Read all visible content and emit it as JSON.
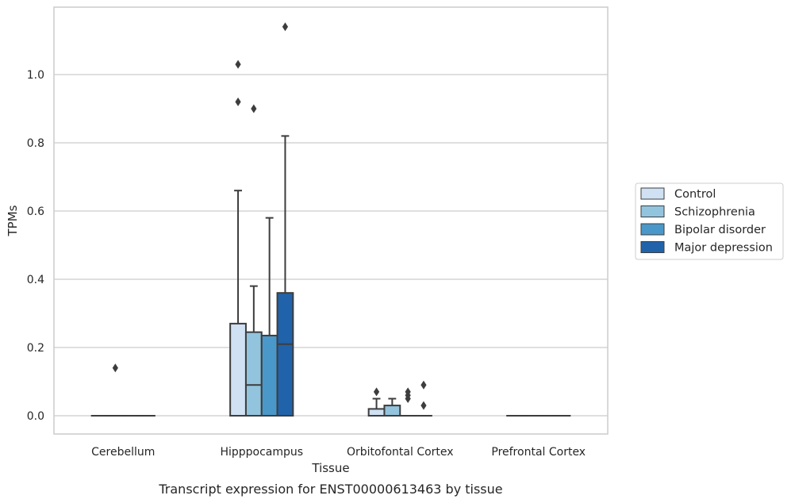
{
  "caption": "Transcript expression for ENST00000613463 by tissue",
  "chart_data": {
    "type": "box",
    "xlabel": "Tissue",
    "ylabel": "TPMs",
    "ylim": [
      -0.055,
      1.2
    ],
    "yticks": [
      "0.0",
      "0.2",
      "0.4",
      "0.6",
      "0.8",
      "1.0"
    ],
    "grid": true,
    "legend_position": "right",
    "categories": [
      "Cerebellum",
      "Hipppocampus",
      "Orbitofontal Cortex",
      "Prefrontal Cortex"
    ],
    "series": [
      {
        "name": "Control",
        "color": "#cfe1f2",
        "boxes": [
          {
            "q1": 0,
            "median": 0,
            "q3": 0,
            "whisker_low": 0,
            "whisker_high": 0,
            "outliers": []
          },
          {
            "q1": 0,
            "median": 0,
            "q3": 0.27,
            "whisker_low": 0,
            "whisker_high": 0.66,
            "outliers": [
              0.92,
              1.03
            ]
          },
          {
            "q1": 0,
            "median": 0,
            "q3": 0.02,
            "whisker_low": 0,
            "whisker_high": 0.05,
            "outliers": [
              0.07
            ]
          },
          {
            "q1": 0,
            "median": 0,
            "q3": 0,
            "whisker_low": 0,
            "whisker_high": 0,
            "outliers": []
          }
        ]
      },
      {
        "name": "Schizophrenia",
        "color": "#93c4de",
        "boxes": [
          {
            "q1": 0,
            "median": 0,
            "q3": 0,
            "whisker_low": 0,
            "whisker_high": 0,
            "outliers": [
              0.14
            ]
          },
          {
            "q1": 0,
            "median": 0.09,
            "q3": 0.245,
            "whisker_low": 0,
            "whisker_high": 0.38,
            "outliers": [
              0.9
            ]
          },
          {
            "q1": 0,
            "median": 0,
            "q3": 0.03,
            "whisker_low": 0,
            "whisker_high": 0.05,
            "outliers": []
          },
          {
            "q1": 0,
            "median": 0,
            "q3": 0,
            "whisker_low": 0,
            "whisker_high": 0,
            "outliers": []
          }
        ]
      },
      {
        "name": "Bipolar disorder",
        "color": "#4a98c9",
        "boxes": [
          {
            "q1": 0,
            "median": 0,
            "q3": 0,
            "whisker_low": 0,
            "whisker_high": 0,
            "outliers": []
          },
          {
            "q1": 0,
            "median": 0,
            "q3": 0.235,
            "whisker_low": 0,
            "whisker_high": 0.58,
            "outliers": []
          },
          {
            "q1": 0,
            "median": 0,
            "q3": 0,
            "whisker_low": 0,
            "whisker_high": 0,
            "outliers": [
              0.05,
              0.06,
              0.07
            ]
          },
          {
            "q1": 0,
            "median": 0,
            "q3": 0,
            "whisker_low": 0,
            "whisker_high": 0,
            "outliers": []
          }
        ]
      },
      {
        "name": "Major depression",
        "color": "#2163aa",
        "boxes": [
          {
            "q1": 0,
            "median": 0,
            "q3": 0,
            "whisker_low": 0,
            "whisker_high": 0,
            "outliers": []
          },
          {
            "q1": 0,
            "median": 0.21,
            "q3": 0.36,
            "whisker_low": 0,
            "whisker_high": 0.82,
            "outliers": [
              1.14
            ]
          },
          {
            "q1": 0,
            "median": 0,
            "q3": 0,
            "whisker_low": 0,
            "whisker_high": 0,
            "outliers": [
              0.03,
              0.09
            ]
          },
          {
            "q1": 0,
            "median": 0,
            "q3": 0,
            "whisker_low": 0,
            "whisker_high": 0,
            "outliers": []
          }
        ]
      }
    ]
  }
}
